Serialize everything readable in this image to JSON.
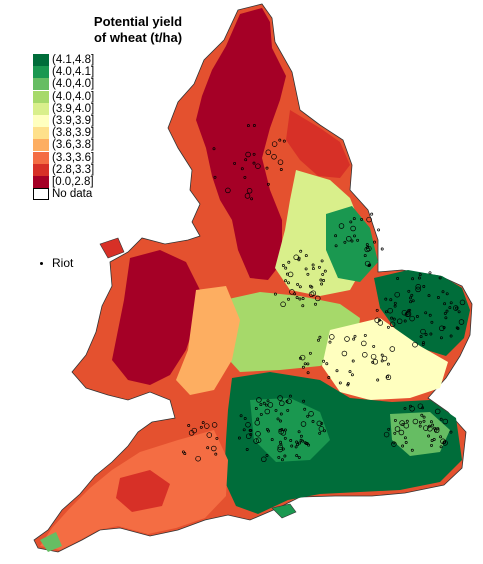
{
  "legend": {
    "title_line1": "Potential yield",
    "title_line2": "of wheat (t/ha)",
    "classes": [
      {
        "label": "(4.1,4.8]",
        "color": "#006d3a"
      },
      {
        "label": "(4.0,4.1]",
        "color": "#1a9850"
      },
      {
        "label": "(4.0,4.0]",
        "color": "#66bd63"
      },
      {
        "label": "(4.0,4.0]",
        "color": "#a6d96a"
      },
      {
        "label": "(3.9,4.0]",
        "color": "#d9ef8b"
      },
      {
        "label": "(3.9,3.9]",
        "color": "#ffffbf"
      },
      {
        "label": "(3.8,3.9]",
        "color": "#fee08b"
      },
      {
        "label": "(3.6,3.8]",
        "color": "#fdae61"
      },
      {
        "label": "(3.3,3.6]",
        "color": "#f46d43"
      },
      {
        "label": "(2.8,3.3]",
        "color": "#d73027"
      },
      {
        "label": "[0.0,2.8]",
        "color": "#a50026"
      },
      {
        "label": "No data",
        "color": "#ffffff"
      }
    ],
    "riot_label": "Riot"
  }
}
